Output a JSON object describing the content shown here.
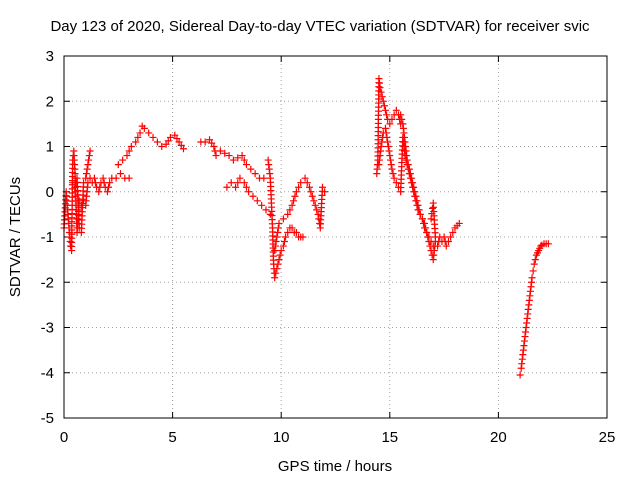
{
  "chart_data": {
    "type": "scatter",
    "title": "Day 123 of 2020, Sidereal Day-to-day VTEC variation (SDTVAR) for receiver svic",
    "xlabel": "GPS time / hours",
    "ylabel": "SDTVAR / TECUs",
    "xlim": [
      0,
      25
    ],
    "ylim": [
      -5,
      3
    ],
    "xticks": [
      0,
      5,
      10,
      15,
      20,
      25
    ],
    "yticks": [
      -5,
      -4,
      -3,
      -2,
      -1,
      0,
      1,
      2,
      3
    ],
    "xtick_labels": [
      "0",
      "5",
      "10",
      "15",
      "20",
      "25"
    ],
    "ytick_labels": [
      "-5",
      "-4",
      "-3",
      "-2",
      "-1",
      "0",
      "1",
      "2",
      "3"
    ],
    "grid": true,
    "marker": "+",
    "color": "#ff0000",
    "series": [
      {
        "name": "SDTVAR",
        "segments": [
          {
            "x": [
              0.0,
              0.1,
              0.2,
              0.3,
              0.35,
              0.4,
              0.45,
              0.5,
              0.55,
              0.6,
              0.7,
              0.8,
              0.9,
              1.0,
              1.1,
              1.2,
              1.3,
              1.4,
              1.5,
              1.6,
              1.7,
              1.8,
              1.9,
              2.0,
              2.1,
              2.2,
              2.4,
              2.6,
              2.8,
              3.0
            ],
            "y": [
              -0.8,
              0.0,
              -0.6,
              -1.2,
              -1.3,
              0.7,
              0.9,
              0.5,
              -0.2,
              -0.9,
              -0.2,
              -0.3,
              -0.2,
              -0.3,
              0.2,
              0.3,
              0.2,
              0.3,
              0.1,
              0.0,
              0.2,
              0.3,
              0.1,
              0.0,
              0.2,
              0.3,
              0.3,
              0.4,
              0.3,
              0.3
            ]
          },
          {
            "x": [
              0.4,
              0.5,
              0.6,
              0.7,
              0.8,
              0.9,
              1.0,
              1.2
            ],
            "y": [
              0.2,
              0.1,
              0.3,
              -0.8,
              -0.9,
              0.2,
              0.3,
              0.9
            ]
          },
          {
            "x": [
              2.5,
              2.7,
              2.9,
              3.1,
              3.3,
              3.5,
              3.6,
              3.7,
              3.9,
              4.1,
              4.3,
              4.5,
              4.7,
              4.9,
              5.1,
              5.3,
              5.5
            ],
            "y": [
              0.6,
              0.7,
              0.8,
              1.0,
              1.1,
              1.3,
              1.45,
              1.4,
              1.3,
              1.2,
              1.1,
              1.0,
              1.05,
              1.2,
              1.25,
              1.1,
              0.95
            ]
          },
          {
            "x": [
              6.3,
              6.5,
              6.7,
              6.9,
              7.0,
              7.2,
              7.4,
              7.6,
              7.8,
              8.0,
              8.2,
              8.4,
              8.6,
              8.8,
              9.0,
              9.2
            ],
            "y": [
              1.1,
              1.1,
              1.15,
              1.0,
              0.8,
              0.9,
              0.85,
              0.8,
              0.7,
              0.75,
              0.8,
              0.6,
              0.5,
              0.4,
              0.3,
              0.3
            ]
          },
          {
            "x": [
              7.5,
              7.7,
              7.9,
              8.1,
              8.3,
              8.5,
              8.7,
              8.9,
              9.1,
              9.3,
              9.5
            ],
            "y": [
              0.1,
              0.2,
              0.1,
              0.3,
              0.2,
              0.0,
              -0.1,
              -0.2,
              -0.3,
              -0.4,
              -0.5
            ]
          },
          {
            "x": [
              9.4,
              9.5,
              9.6,
              9.65,
              9.7,
              9.8,
              9.9,
              10.0,
              10.1,
              10.2,
              10.3,
              10.4,
              10.5,
              10.6,
              10.7,
              10.8,
              10.9,
              11.0
            ],
            "y": [
              0.7,
              0.3,
              -0.8,
              -1.6,
              -1.9,
              -1.7,
              -1.5,
              -1.3,
              -1.2,
              -1.0,
              -0.9,
              -0.8,
              -0.8,
              -0.9,
              -0.9,
              -1.0,
              -1.0,
              -1.0
            ]
          },
          {
            "x": [
              9.7,
              9.9,
              10.1,
              10.3,
              10.5,
              10.7,
              10.9,
              11.1,
              11.3,
              11.5,
              11.7,
              11.8,
              11.9,
              12.0
            ],
            "y": [
              -1.3,
              -0.7,
              -0.6,
              -0.5,
              -0.3,
              0.0,
              0.2,
              0.3,
              0.1,
              -0.2,
              -0.5,
              -0.8,
              0.1,
              0.0
            ]
          },
          {
            "x": [
              14.4,
              14.45,
              14.5,
              14.55,
              14.6,
              14.7,
              14.8,
              14.9,
              15.0,
              15.1,
              15.2,
              15.3,
              15.4,
              15.5
            ],
            "y": [
              0.4,
              0.7,
              2.5,
              2.3,
              2.2,
              2.0,
              1.8,
              1.6,
              1.5,
              1.6,
              1.7,
              1.8,
              1.7,
              1.5
            ]
          },
          {
            "x": [
              14.5,
              14.6,
              14.7,
              14.8,
              14.9,
              15.0,
              15.1,
              15.2,
              15.3,
              15.4,
              15.5,
              15.6,
              15.7,
              15.8,
              15.9,
              16.0,
              16.1,
              16.2,
              16.3,
              16.4,
              16.5,
              16.6,
              16.7,
              16.8,
              16.9,
              17.0
            ],
            "y": [
              0.6,
              1.0,
              1.3,
              1.4,
              1.1,
              0.8,
              0.5,
              0.3,
              0.2,
              0.1,
              0.0,
              1.2,
              0.8,
              0.6,
              0.4,
              0.2,
              0.0,
              -0.2,
              -0.4,
              -0.5,
              -0.6,
              -0.8,
              -0.9,
              -1.0,
              -1.1,
              -1.2
            ]
          },
          {
            "x": [
              15.5,
              15.6,
              15.7,
              15.8,
              15.9,
              16.0,
              16.1,
              16.2,
              16.3,
              16.4,
              16.5,
              16.6,
              16.7,
              16.8,
              16.9,
              17.0,
              17.1,
              17.2,
              17.3,
              17.4,
              17.5,
              17.6,
              17.7,
              17.8,
              17.9,
              18.0,
              18.1,
              18.2
            ],
            "y": [
              1.7,
              1.5,
              1.1,
              0.7,
              0.5,
              0.3,
              0.1,
              -0.1,
              -0.3,
              -0.5,
              -0.6,
              -0.7,
              -0.9,
              -1.1,
              -1.3,
              -1.5,
              -1.1,
              -1.2,
              -1.0,
              -1.1,
              -1.0,
              -1.2,
              -1.1,
              -1.0,
              -0.9,
              -0.8,
              -0.75,
              -0.7
            ]
          },
          {
            "x": [
              16.9,
              17.0,
              17.1
            ],
            "y": [
              -0.6,
              -0.25,
              -1.0
            ]
          },
          {
            "x": [
              21.0,
              21.05,
              21.1,
              21.15,
              21.2,
              21.25,
              21.3,
              21.35,
              21.4,
              21.45,
              21.5,
              21.55,
              21.6,
              21.65,
              21.7,
              21.75,
              21.8,
              21.85,
              21.9,
              21.95,
              22.0,
              22.1,
              22.2,
              22.3
            ],
            "y": [
              -4.05,
              -3.9,
              -3.7,
              -3.5,
              -3.3,
              -3.1,
              -2.9,
              -2.7,
              -2.5,
              -2.3,
              -2.1,
              -1.9,
              -1.75,
              -1.6,
              -1.5,
              -1.4,
              -1.35,
              -1.3,
              -1.25,
              -1.2,
              -1.18,
              -1.15,
              -1.15,
              -1.15
            ]
          }
        ]
      }
    ]
  }
}
